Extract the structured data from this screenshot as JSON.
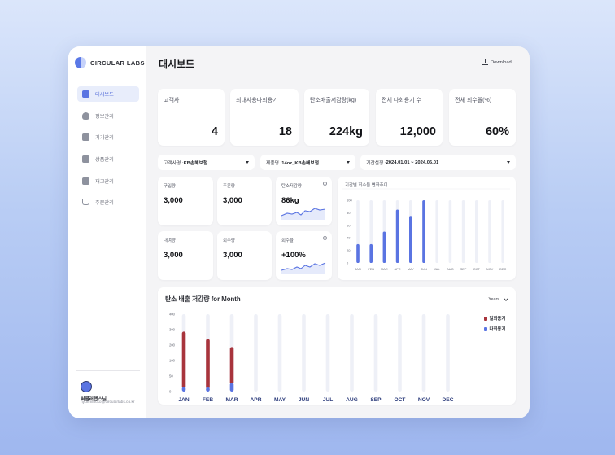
{
  "brand": {
    "name": "CIRCULAR LABS",
    "logo_icon": "half-circle-logo"
  },
  "sidebar": {
    "items": [
      {
        "label": "대시보드",
        "icon": "bar-chart-icon",
        "active": true
      },
      {
        "label": "정보관리",
        "icon": "person-icon",
        "active": false
      },
      {
        "label": "기기관리",
        "icon": "device-icon",
        "active": false
      },
      {
        "label": "상품관리",
        "icon": "product-icon",
        "active": false
      },
      {
        "label": "재고관리",
        "icon": "info-icon",
        "active": false
      },
      {
        "label": "주문관리",
        "icon": "cart-icon",
        "active": false
      }
    ],
    "profile": {
      "name": "써큘러랩스님",
      "email": "hyunmincko@circularlabs.co.kr",
      "icon": "user-avatar-icon"
    }
  },
  "header": {
    "title": "대시보드",
    "download_label": "Download"
  },
  "kpis": [
    {
      "label": "고객사",
      "value": "4"
    },
    {
      "label": "최대사용다회용기",
      "value": "18"
    },
    {
      "label": "탄소배출저감량(kg)",
      "value": "224kg"
    },
    {
      "label": "전체 다회용기 수",
      "value": "12,000"
    },
    {
      "label": "전체 회수율(%)",
      "value": "60%"
    }
  ],
  "filters": [
    {
      "label": "고객사명 : ",
      "value": "KB손해보험"
    },
    {
      "label": "제품명 : ",
      "value": "14oz_KB손해보험"
    },
    {
      "label": "기간설정 : ",
      "value": "2024.01.01 ~ 2024.06.01"
    }
  ],
  "mini_cards": [
    {
      "label": "구입량",
      "value": "3,000"
    },
    {
      "label": "주문량",
      "value": "3,000"
    },
    {
      "label": "탄소저감량",
      "value": "86kg",
      "sparkline": true
    },
    {
      "label": "대여량",
      "value": "3,000"
    },
    {
      "label": "회수량",
      "value": "3,000"
    },
    {
      "label": "회수율",
      "value": "+100%",
      "sparkline": true
    }
  ],
  "colors": {
    "accent": "#5a74e2",
    "bar_red": "#a8343c",
    "bar_blue": "#5a74e2",
    "track": "#eef0f7"
  },
  "chart_data": [
    {
      "type": "bar",
      "title": "기간별 회수율 변화추이",
      "categories": [
        "JAN",
        "FEB",
        "MAR",
        "APR",
        "MAY",
        "JUN",
        "JUL",
        "AUG",
        "SEP",
        "OCT",
        "NOV",
        "DEC"
      ],
      "values": [
        30,
        30,
        50,
        85,
        75,
        100,
        0,
        0,
        0,
        0,
        0,
        0
      ],
      "yticks": [
        "100",
        "80",
        "60",
        "40",
        "20",
        "0"
      ],
      "ylim": [
        0,
        100
      ]
    },
    {
      "type": "bar",
      "title": "탄소 배출 저감량 for Month",
      "categories": [
        "JAN",
        "FEB",
        "MAR",
        "APR",
        "MAY",
        "JUN",
        "JUL",
        "AUG",
        "SEP",
        "OCT",
        "NOV",
        "DEC"
      ],
      "series": [
        {
          "name": "다회용기",
          "values": [
            25,
            22,
            45,
            0,
            0,
            0,
            0,
            0,
            0,
            0,
            0,
            0
          ]
        },
        {
          "name": "일회용기",
          "values": [
            285,
            250,
            185,
            0,
            0,
            0,
            0,
            0,
            0,
            0,
            0,
            0
          ]
        }
      ],
      "yticks": [
        "400",
        "300",
        "200",
        "100",
        "50",
        "0"
      ],
      "ylim": [
        0,
        400
      ],
      "filter_label": "Years",
      "legend": [
        "일회용기",
        "다회용기"
      ]
    }
  ]
}
